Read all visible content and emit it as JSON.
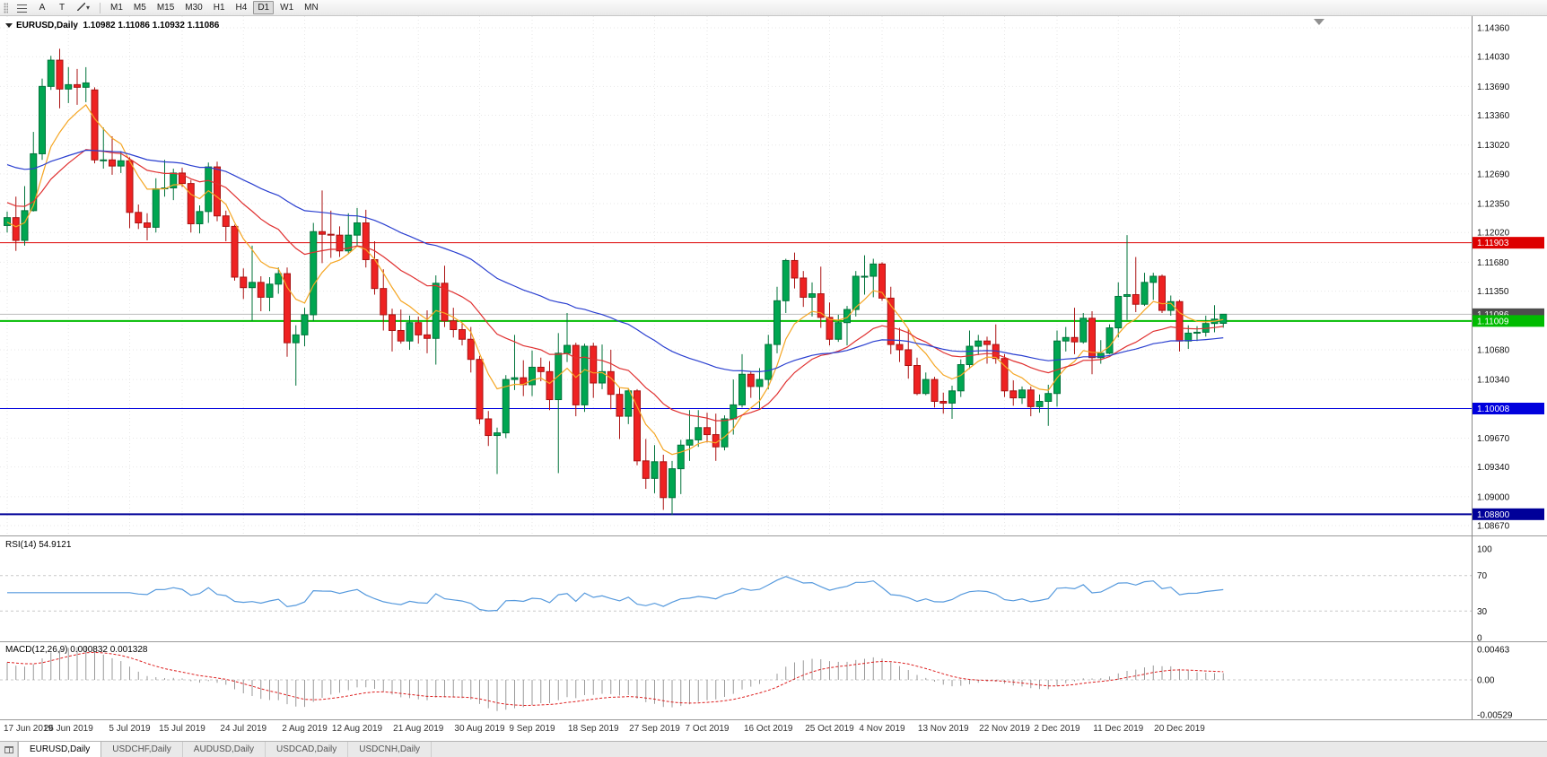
{
  "toolbar": {
    "button_a": "A",
    "button_t": "T",
    "timeframes": [
      "M1",
      "M5",
      "M15",
      "M30",
      "H1",
      "H4",
      "D1",
      "W1",
      "MN"
    ],
    "active_timeframe": "D1"
  },
  "header": {
    "symbol": "EURUSD,Daily",
    "ohlc": "1.10982 1.11086 1.10932 1.11086"
  },
  "tabs": {
    "items": [
      "EURUSD,Daily",
      "USDCHF,Daily",
      "AUDUSD,Daily",
      "USDCAD,Daily",
      "USDCNH,Daily"
    ],
    "active_index": 0
  },
  "chart_data": {
    "type": "candlestick",
    "symbol": "EURUSD",
    "timeframe": "Daily",
    "ohlc_current": {
      "open": 1.10982,
      "high": 1.11086,
      "low": 1.10932,
      "close": 1.11086
    },
    "price_ticks": [
      1.1436,
      1.1403,
      1.1369,
      1.1336,
      1.1302,
      1.1269,
      1.1235,
      1.1202,
      1.1168,
      1.1135,
      1.1068,
      1.1034,
      1.0967,
      1.0934,
      1.09,
      1.0867
    ],
    "hlines": [
      {
        "name": "red-resistance",
        "price": 1.11903,
        "color": "#dd0000",
        "width": 1
      },
      {
        "name": "green-support",
        "price": 1.11009,
        "color": "#00bb00",
        "width": 2
      },
      {
        "name": "blue-support",
        "price": 1.10008,
        "color": "#0000dd",
        "width": 1
      },
      {
        "name": "navy-support",
        "price": 1.088,
        "color": "#000099",
        "width": 2
      }
    ],
    "current_price": 1.11086,
    "current_price_badge_color": "#4d4d4d",
    "colors": {
      "bull_fill": "#00a651",
      "bull_border": "#00733a",
      "bear_fill": "#ee2222",
      "bear_border": "#aa1111",
      "grid": "#e7e7e7",
      "axis_text": "#111111",
      "separator": "#9a9a9a",
      "date_text": "#333333",
      "axis_line": "#888888"
    },
    "x_axis_labels": [
      [
        "17 Jun 2019",
        0
      ],
      [
        "26 Jun 2019",
        7
      ],
      [
        "5 Jul 2019",
        14
      ],
      [
        "15 Jul 2019",
        20
      ],
      [
        "24 Jul 2019",
        27
      ],
      [
        "2 Aug 2019",
        34
      ],
      [
        "12 Aug 2019",
        40
      ],
      [
        "21 Aug 2019",
        47
      ],
      [
        "30 Aug 2019",
        54
      ],
      [
        "9 Sep 2019",
        60
      ],
      [
        "18 Sep 2019",
        67
      ],
      [
        "27 Sep 2019",
        74
      ],
      [
        "7 Oct 2019",
        80
      ],
      [
        "16 Oct 2019",
        87
      ],
      [
        "25 Oct 2019",
        94
      ],
      [
        "4 Nov 2019",
        100
      ],
      [
        "13 Nov 2019",
        107
      ],
      [
        "22 Nov 2019",
        114
      ],
      [
        "2 Dec 2019",
        120
      ],
      [
        "11 Dec 2019",
        127
      ],
      [
        "20 Dec 2019",
        134
      ]
    ],
    "moving_averages": [
      {
        "period": 7,
        "color": "#f5a623",
        "seed": 1.1212
      },
      {
        "period": 21,
        "color": "#e03030",
        "seed": 1.1238
      },
      {
        "period": 50,
        "color": "#2a3fd0",
        "seed": 1.1282
      }
    ],
    "rsi": {
      "label": "RSI(14) 54.9121",
      "period": 14,
      "value": 54.9121,
      "levels": [
        100,
        70,
        30,
        0
      ],
      "dashed_levels": [
        70,
        30
      ],
      "color": "#5599dd"
    },
    "macd": {
      "label": "MACD(12,26,9) 0.000832 0.001328",
      "fast": 12,
      "slow": 26,
      "signal_period": 9,
      "values": [
        0.000832,
        0.001328
      ],
      "axis": [
        {
          "label": "0.00463",
          "value": 0.00463
        },
        {
          "label": "0.00",
          "value": 0
        },
        {
          "label": "-0.00529",
          "value": -0.00529
        }
      ],
      "histogram_color": "#999999",
      "signal_color": "#dd2020"
    },
    "candles": [
      [
        "Jun 17",
        1.121,
        1.1226,
        1.1202,
        1.1219
      ],
      [
        "Jun 18",
        1.1219,
        1.1243,
        1.1181,
        1.1193
      ],
      [
        "Jun 19",
        1.1193,
        1.1255,
        1.1187,
        1.1227
      ],
      [
        "Jun 20",
        1.1227,
        1.1317,
        1.1226,
        1.1292
      ],
      [
        "Jun 21",
        1.1292,
        1.1378,
        1.1285,
        1.1369
      ],
      [
        "Jun 24",
        1.1369,
        1.1404,
        1.1365,
        1.1399
      ],
      [
        "Jun 25",
        1.1399,
        1.1412,
        1.1344,
        1.1366
      ],
      [
        "Jun 26",
        1.1366,
        1.1391,
        1.135,
        1.1371
      ],
      [
        "Jun 27",
        1.1371,
        1.1389,
        1.1348,
        1.1368
      ],
      [
        "Jun 28",
        1.1368,
        1.1391,
        1.1351,
        1.1373
      ],
      [
        "Jul 1",
        1.1365,
        1.1368,
        1.1281,
        1.1285
      ],
      [
        "Jul 2",
        1.1285,
        1.1322,
        1.1275,
        1.1285
      ],
      [
        "Jul 3",
        1.1285,
        1.1312,
        1.1268,
        1.1278
      ],
      [
        "Jul 4",
        1.1278,
        1.1295,
        1.127,
        1.1284
      ],
      [
        "Jul 5",
        1.1284,
        1.1288,
        1.1207,
        1.1225
      ],
      [
        "Jul 8",
        1.1225,
        1.1234,
        1.1206,
        1.1213
      ],
      [
        "Jul 9",
        1.1213,
        1.1224,
        1.1193,
        1.1208
      ],
      [
        "Jul 10",
        1.1208,
        1.1264,
        1.1202,
        1.1252
      ],
      [
        "Jul 11",
        1.1252,
        1.1285,
        1.1243,
        1.1253
      ],
      [
        "Jul 12",
        1.1253,
        1.1275,
        1.1239,
        1.127
      ],
      [
        "Jul 15",
        1.127,
        1.1276,
        1.1254,
        1.1258
      ],
      [
        "Jul 16",
        1.1258,
        1.1262,
        1.1202,
        1.1212
      ],
      [
        "Jul 17",
        1.1212,
        1.1233,
        1.1201,
        1.1226
      ],
      [
        "Jul 18",
        1.1226,
        1.1282,
        1.1213,
        1.1277
      ],
      [
        "Jul 19",
        1.1277,
        1.1283,
        1.1215,
        1.1221
      ],
      [
        "Jul 22",
        1.1221,
        1.1227,
        1.1192,
        1.1209
      ],
      [
        "Jul 23",
        1.1209,
        1.1211,
        1.1147,
        1.1151
      ],
      [
        "Jul 24",
        1.1151,
        1.1161,
        1.1126,
        1.1139
      ],
      [
        "Jul 25",
        1.1139,
        1.1187,
        1.1101,
        1.1145
      ],
      [
        "Jul 26",
        1.1145,
        1.1152,
        1.1112,
        1.1128
      ],
      [
        "Jul 29",
        1.1128,
        1.1151,
        1.1112,
        1.1143
      ],
      [
        "Jul 30",
        1.1143,
        1.1162,
        1.1132,
        1.1155
      ],
      [
        "Jul 31",
        1.1155,
        1.1162,
        1.106,
        1.1076
      ],
      [
        "Aug 1",
        1.1076,
        1.1096,
        1.1027,
        1.1085
      ],
      [
        "Aug 2",
        1.1085,
        1.1116,
        1.1072,
        1.1108
      ],
      [
        "Aug 5",
        1.1108,
        1.1213,
        1.1101,
        1.1203
      ],
      [
        "Aug 6",
        1.1203,
        1.125,
        1.1167,
        1.12
      ],
      [
        "Aug 7",
        1.12,
        1.1227,
        1.1173,
        1.1199
      ],
      [
        "Aug 8",
        1.1199,
        1.1209,
        1.1174,
        1.1181
      ],
      [
        "Aug 9",
        1.1181,
        1.1224,
        1.1178,
        1.1199
      ],
      [
        "Aug 12",
        1.1199,
        1.123,
        1.1187,
        1.1213
      ],
      [
        "Aug 13",
        1.1213,
        1.1228,
        1.1162,
        1.1171
      ],
      [
        "Aug 14",
        1.1171,
        1.1192,
        1.1131,
        1.1138
      ],
      [
        "Aug 15",
        1.1138,
        1.116,
        1.109,
        1.1108
      ],
      [
        "Aug 16",
        1.1108,
        1.1115,
        1.1066,
        1.109
      ],
      [
        "Aug 19",
        1.109,
        1.1114,
        1.1075,
        1.1078
      ],
      [
        "Aug 20",
        1.1078,
        1.1107,
        1.1068,
        1.1099
      ],
      [
        "Aug 21",
        1.1099,
        1.1106,
        1.1075,
        1.1085
      ],
      [
        "Aug 22",
        1.1085,
        1.1113,
        1.1064,
        1.1081
      ],
      [
        "Aug 23",
        1.1081,
        1.1153,
        1.1051,
        1.1144
      ],
      [
        "Aug 26",
        1.1144,
        1.1164,
        1.1094,
        1.1101
      ],
      [
        "Aug 27",
        1.1101,
        1.1116,
        1.1082,
        1.1091
      ],
      [
        "Aug 28",
        1.1091,
        1.1098,
        1.1073,
        1.108
      ],
      [
        "Aug 29",
        1.108,
        1.1094,
        1.1042,
        1.1057
      ],
      [
        "Aug 30",
        1.1057,
        1.1061,
        1.0983,
        1.0989
      ],
      [
        "Sep 2",
        1.0989,
        1.0998,
        1.0958,
        1.097
      ],
      [
        "Sep 3",
        1.097,
        1.0979,
        1.0926,
        1.0973
      ],
      [
        "Sep 4",
        1.0973,
        1.1039,
        1.0967,
        1.1034
      ],
      [
        "Sep 5",
        1.1034,
        1.1085,
        1.1022,
        1.1036
      ],
      [
        "Sep 6",
        1.1036,
        1.1056,
        1.1015,
        1.1028
      ],
      [
        "Sep 9",
        1.1028,
        1.1067,
        1.1015,
        1.1048
      ],
      [
        "Sep 10",
        1.1048,
        1.1059,
        1.1032,
        1.1043
      ],
      [
        "Sep 11",
        1.1043,
        1.1055,
        1.0999,
        1.1011
      ],
      [
        "Sep 12",
        1.1011,
        1.1087,
        1.0927,
        1.1064
      ],
      [
        "Sep 13",
        1.1064,
        1.111,
        1.1054,
        1.1073
      ],
      [
        "Sep 16",
        1.1073,
        1.1076,
        1.0992,
        1.1005
      ],
      [
        "Sep 17",
        1.1005,
        1.1075,
        1.0997,
        1.1072
      ],
      [
        "Sep 18",
        1.1072,
        1.1076,
        1.1013,
        1.103
      ],
      [
        "Sep 19",
        1.103,
        1.1074,
        1.1023,
        1.1043
      ],
      [
        "Sep 20",
        1.1043,
        1.1068,
        1.1,
        1.1017
      ],
      [
        "Sep 23",
        1.1017,
        1.1025,
        1.0966,
        1.0992
      ],
      [
        "Sep 24",
        1.0992,
        1.1024,
        1.0983,
        1.1021
      ],
      [
        "Sep 25",
        1.1021,
        1.1023,
        1.0936,
        1.0941
      ],
      [
        "Sep 26",
        1.0941,
        1.0966,
        1.0909,
        1.0921
      ],
      [
        "Sep 27",
        1.0921,
        1.0959,
        1.0904,
        1.094
      ],
      [
        "Sep 30",
        1.094,
        1.0948,
        1.0885,
        1.0899
      ],
      [
        "Oct 1",
        1.0899,
        1.0941,
        1.0879,
        1.0932
      ],
      [
        "Oct 2",
        1.0932,
        1.0965,
        1.0903,
        1.0959
      ],
      [
        "Oct 3",
        1.0959,
        1.0999,
        1.0941,
        1.0965
      ],
      [
        "Oct 4",
        1.0965,
        1.0999,
        1.0957,
        1.0979
      ],
      [
        "Oct 7",
        1.0979,
        1.0996,
        1.0962,
        1.0971
      ],
      [
        "Oct 8",
        1.0971,
        1.0995,
        1.0941,
        1.0957
      ],
      [
        "Oct 9",
        1.0957,
        1.0993,
        1.0953,
        1.0989
      ],
      [
        "Oct 10",
        1.0989,
        1.1034,
        1.0971,
        1.1005
      ],
      [
        "Oct 11",
        1.1005,
        1.1063,
        1.1002,
        1.104
      ],
      [
        "Oct 14",
        1.104,
        1.1043,
        1.1013,
        1.1026
      ],
      [
        "Oct 15",
        1.1026,
        1.1047,
        1.1001,
        1.1034
      ],
      [
        "Oct 16",
        1.1034,
        1.1085,
        1.1023,
        1.1074
      ],
      [
        "Oct 17",
        1.1074,
        1.114,
        1.1064,
        1.1124
      ],
      [
        "Oct 18",
        1.1124,
        1.1172,
        1.111,
        1.117
      ],
      [
        "Oct 21",
        1.117,
        1.1179,
        1.1138,
        1.115
      ],
      [
        "Oct 22",
        1.115,
        1.1158,
        1.1117,
        1.1128
      ],
      [
        "Oct 23",
        1.1128,
        1.1145,
        1.1106,
        1.1132
      ],
      [
        "Oct 24",
        1.1132,
        1.1163,
        1.1093,
        1.1105
      ],
      [
        "Oct 25",
        1.1105,
        1.1122,
        1.1073,
        1.108
      ],
      [
        "Oct 28",
        1.108,
        1.1108,
        1.1077,
        1.1099
      ],
      [
        "Oct 29",
        1.1099,
        1.1118,
        1.1073,
        1.1114
      ],
      [
        "Oct 30",
        1.1114,
        1.1158,
        1.1106,
        1.1152
      ],
      [
        "Oct 31",
        1.1152,
        1.1176,
        1.1131,
        1.1152
      ],
      [
        "Nov 1",
        1.1152,
        1.1172,
        1.1128,
        1.1166
      ],
      [
        "Nov 4",
        1.1166,
        1.1168,
        1.1124,
        1.1127
      ],
      [
        "Nov 5",
        1.1127,
        1.114,
        1.1063,
        1.1074
      ],
      [
        "Nov 6",
        1.1074,
        1.1093,
        1.1054,
        1.1068
      ],
      [
        "Nov 7",
        1.1068,
        1.1092,
        1.1035,
        1.105
      ],
      [
        "Nov 8",
        1.105,
        1.1059,
        1.1016,
        1.1018
      ],
      [
        "Nov 11",
        1.1018,
        1.1042,
        1.1016,
        1.1034
      ],
      [
        "Nov 12",
        1.1034,
        1.1037,
        1.1002,
        1.1009
      ],
      [
        "Nov 13",
        1.1009,
        1.1019,
        1.0995,
        1.1007
      ],
      [
        "Nov 14",
        1.1007,
        1.1027,
        1.0989,
        1.1021
      ],
      [
        "Nov 15",
        1.1021,
        1.1057,
        1.1014,
        1.1051
      ],
      [
        "Nov 18",
        1.1051,
        1.109,
        1.1046,
        1.1072
      ],
      [
        "Nov 19",
        1.1072,
        1.1085,
        1.1062,
        1.1078
      ],
      [
        "Nov 20",
        1.1078,
        1.1083,
        1.1052,
        1.1074
      ],
      [
        "Nov 21",
        1.1074,
        1.1097,
        1.1052,
        1.1058
      ],
      [
        "Nov 22",
        1.1058,
        1.1063,
        1.1014,
        1.1021
      ],
      [
        "Nov 25",
        1.1021,
        1.1033,
        1.1004,
        1.1013
      ],
      [
        "Nov 26",
        1.1013,
        1.1026,
        1.1006,
        1.1022
      ],
      [
        "Nov 27",
        1.1022,
        1.1026,
        1.0992,
        1.1003
      ],
      [
        "Nov 28",
        1.1003,
        1.1017,
        1.0996,
        1.1009
      ],
      [
        "Nov 29",
        1.1009,
        1.1028,
        1.0981,
        1.1018
      ],
      [
        "Dec 2",
        1.1018,
        1.109,
        1.1003,
        1.1078
      ],
      [
        "Dec 3",
        1.1078,
        1.1094,
        1.1066,
        1.1082
      ],
      [
        "Dec 4",
        1.1082,
        1.1116,
        1.1063,
        1.1077
      ],
      [
        "Dec 5",
        1.1077,
        1.111,
        1.1075,
        1.1104
      ],
      [
        "Dec 6",
        1.1104,
        1.1112,
        1.104,
        1.1059
      ],
      [
        "Dec 9",
        1.1059,
        1.1079,
        1.1052,
        1.1064
      ],
      [
        "Dec 10",
        1.1064,
        1.1097,
        1.1063,
        1.1093
      ],
      [
        "Dec 11",
        1.1093,
        1.1145,
        1.1082,
        1.1129
      ],
      [
        "Dec 12",
        1.1129,
        1.1199,
        1.1102,
        1.1131
      ],
      [
        "Dec 13",
        1.1131,
        1.1174,
        1.1111,
        1.112
      ],
      [
        "Dec 16",
        1.112,
        1.1156,
        1.1118,
        1.1145
      ],
      [
        "Dec 17",
        1.1145,
        1.1156,
        1.1125,
        1.1152
      ],
      [
        "Dec 18",
        1.1152,
        1.1154,
        1.111,
        1.1113
      ],
      [
        "Dec 19",
        1.1113,
        1.113,
        1.1107,
        1.1123
      ],
      [
        "Dec 20",
        1.1123,
        1.1125,
        1.1066,
        1.1078
      ],
      [
        "Dec 23",
        1.1078,
        1.1096,
        1.1069,
        1.1087
      ],
      [
        "Dec 24",
        1.1087,
        1.1095,
        1.1078,
        1.1088
      ],
      [
        "Dec 26",
        1.1088,
        1.1107,
        1.1083,
        1.1098
      ],
      [
        "Dec 27",
        1.1098,
        1.1119,
        1.1088,
        1.1103
      ],
      [
        "Dec 30",
        1.10982,
        1.11086,
        1.10932,
        1.11086
      ]
    ]
  }
}
